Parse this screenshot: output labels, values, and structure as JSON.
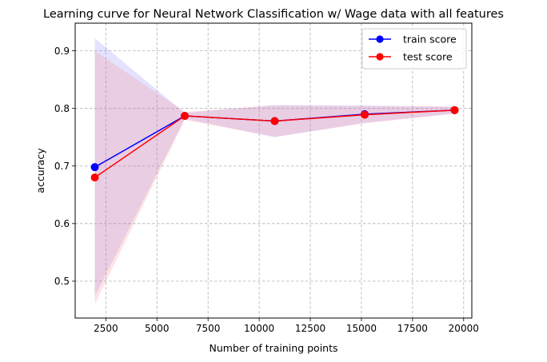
{
  "chart_data": {
    "type": "line",
    "title": "Learning curve for Neural Network Classification w/ Wage data with all features",
    "xlabel": "Number of training points",
    "ylabel": "accuracy",
    "x": [
      1960,
      6360,
      10760,
      15160,
      19560
    ],
    "xlim": [
      1000,
      20400
    ],
    "ylim": [
      0.436,
      0.948
    ],
    "xticks": [
      2500,
      5000,
      7500,
      10000,
      12500,
      15000,
      17500,
      20000
    ],
    "yticks": [
      0.5,
      0.6,
      0.7,
      0.8,
      0.9
    ],
    "grid": true,
    "legend_position": "top-right",
    "series": [
      {
        "name": "train score",
        "color": "#0000ff",
        "band_color": "#8080ff",
        "values": [
          0.698,
          0.787,
          0.778,
          0.79,
          0.797
        ],
        "upper": [
          0.922,
          0.792,
          0.806,
          0.805,
          0.803
        ],
        "lower": [
          0.474,
          0.782,
          0.75,
          0.775,
          0.791
        ]
      },
      {
        "name": "test score",
        "color": "#ff0000",
        "band_color": "#ff8080",
        "values": [
          0.68,
          0.787,
          0.778,
          0.789,
          0.797
        ],
        "upper": [
          0.9,
          0.794,
          0.805,
          0.804,
          0.803
        ],
        "lower": [
          0.46,
          0.78,
          0.751,
          0.774,
          0.791
        ]
      }
    ]
  }
}
